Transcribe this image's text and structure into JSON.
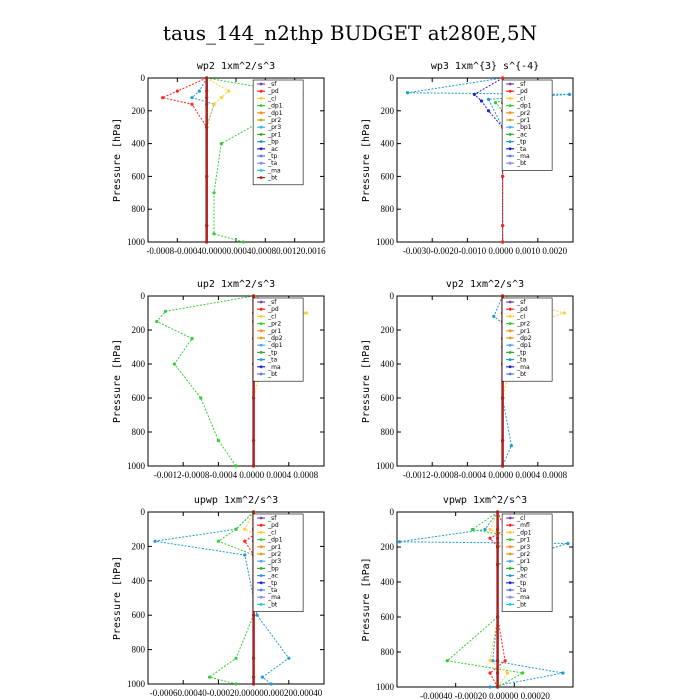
{
  "figure_title": "taus_144_n2thp  BUDGET at280E,5N",
  "chart_data": [
    {
      "type": "line",
      "title": "wp2  1xm^2/s^3",
      "ylabel": "Pressure [hPa]",
      "ylim": [
        1000,
        0
      ],
      "yticks": [
        "0",
        "200",
        "400",
        "600",
        "800",
        "1000"
      ],
      "xlim": [
        -0.0008,
        0.0016
      ],
      "xticks": [
        "-0.0008",
        "-0.0004",
        "0.0000",
        "0.0004",
        "0.0008",
        "0.0012",
        "0.0016"
      ],
      "xticklabels": "-0.0008-0.00040.00000.00040.00080.00120.0016",
      "legend": [
        "_sf",
        "_pd",
        "_cl",
        "_dp1",
        "_dp1",
        "_pr2",
        "_pr3",
        "_pr1",
        "_bp",
        "_ac",
        "_tp",
        "_ta",
        "_ma",
        "_bt"
      ],
      "series": [
        {
          "color": "#1f9bd6",
          "x": [
            0,
            -0.0001,
            -0.0002,
            0.0001,
            0,
            0,
            0,
            0
          ],
          "y": [
            0,
            80,
            120,
            160,
            300,
            600,
            900,
            1000
          ]
        },
        {
          "color": "#ff2020",
          "x": [
            0,
            -0.0004,
            -0.0006,
            -0.0002,
            0,
            0,
            0,
            0
          ],
          "y": [
            0,
            80,
            120,
            160,
            300,
            600,
            900,
            1000
          ]
        },
        {
          "color": "#ffcc33",
          "x": [
            0,
            0.0003,
            0.0002,
            0.0001,
            0,
            0,
            0,
            0
          ],
          "y": [
            0,
            80,
            120,
            160,
            300,
            600,
            900,
            1000
          ]
        },
        {
          "color": "#33cc33",
          "x": [
            0,
            0.0013,
            0.0007,
            0.0008,
            0.0002,
            0.0001,
            0.0001,
            0.0005
          ],
          "y": [
            0,
            100,
            150,
            250,
            400,
            700,
            950,
            1000
          ]
        },
        {
          "color": "#aa2222",
          "x": [
            0,
            0,
            0,
            0,
            0,
            0,
            0,
            0
          ],
          "y": [
            0,
            80,
            120,
            160,
            300,
            600,
            900,
            1000
          ]
        }
      ]
    },
    {
      "type": "line",
      "title": "wp3  1xm^{3} s^{-4}",
      "ylabel": "Pressure [hPa]",
      "ylim": [
        1000,
        0
      ],
      "yticks": [
        "0",
        "200",
        "400",
        "600",
        "800",
        "1000"
      ],
      "xlim": [
        -0.003,
        0.002
      ],
      "xticks": [
        "-0.0030",
        "-0.0020",
        "-0.0010",
        "0.0000",
        "0.0010",
        "0.0020"
      ],
      "xticklabels": "-0.0030-0.0020-0.0010 0.0000 0.0010 0.0020",
      "legend": [
        "_sf",
        "_pd",
        "_cl",
        "_dp1",
        "_pr2",
        "_pr1",
        "_bp1",
        "_ac",
        "_tp",
        "_ta",
        "_ma",
        "_bt"
      ],
      "series": [
        {
          "color": "#1f9bd6",
          "x": [
            0,
            -0.0027,
            0.0019,
            -0.0004,
            0,
            0,
            0,
            0
          ],
          "y": [
            0,
            90,
            100,
            130,
            300,
            600,
            900,
            1000
          ]
        },
        {
          "color": "#2222cc",
          "x": [
            0,
            -0.0008,
            -0.0006,
            -0.0004,
            0,
            0,
            0,
            0
          ],
          "y": [
            0,
            100,
            140,
            200,
            300,
            600,
            900,
            1000
          ]
        },
        {
          "color": "#33cc33",
          "x": [
            0,
            0.0005,
            -0.0002,
            0,
            0,
            0,
            0,
            0
          ],
          "y": [
            0,
            100,
            150,
            200,
            300,
            600,
            900,
            1000
          ]
        },
        {
          "color": "#ffcc33",
          "x": [
            0,
            0.0004,
            0.0002,
            0,
            0,
            0,
            0,
            0
          ],
          "y": [
            0,
            100,
            150,
            200,
            300,
            600,
            900,
            1000
          ]
        },
        {
          "color": "#ff2020",
          "x": [
            0,
            0.0002,
            0,
            0,
            0,
            0,
            0,
            0
          ],
          "y": [
            0,
            100,
            150,
            200,
            300,
            600,
            900,
            1000
          ]
        }
      ]
    },
    {
      "type": "line",
      "title": "up2  1xm^2/s^3",
      "ylabel": "Pressure [hPa]",
      "ylim": [
        1000,
        0
      ],
      "yticks": [
        "0",
        "200",
        "400",
        "600",
        "800",
        "1000"
      ],
      "xlim": [
        -0.0012,
        0.0008
      ],
      "xticks": [
        "-0.0012",
        "-0.0008",
        "-0.0004",
        "0.0000",
        "0.0004",
        "0.0008"
      ],
      "xticklabels": "-0.0012-0.0008-0.0004 0.0000 0.0004 0.0008",
      "legend": [
        "_sf",
        "_pd",
        "_cl",
        "_pr2",
        "_pr1",
        "_dp2",
        "_dp1",
        "_tp",
        "_ta",
        "_ma",
        "_bt"
      ],
      "series": [
        {
          "color": "#33cc33",
          "x": [
            0,
            -0.001,
            -0.0011,
            -0.0007,
            -0.0009,
            -0.0006,
            -0.0004,
            -0.0002
          ],
          "y": [
            0,
            90,
            150,
            250,
            400,
            600,
            850,
            1000
          ]
        },
        {
          "color": "#ffcc33",
          "x": [
            0,
            0.0006,
            0.0003,
            0.0002,
            0.0001,
            0,
            0,
            0
          ],
          "y": [
            0,
            100,
            150,
            250,
            400,
            600,
            850,
            1000
          ]
        },
        {
          "color": "#ff2020",
          "x": [
            0,
            0.0003,
            0.0001,
            0,
            0,
            0,
            0,
            0
          ],
          "y": [
            0,
            100,
            150,
            250,
            400,
            600,
            850,
            1000
          ]
        },
        {
          "color": "#aa2222",
          "x": [
            0,
            0,
            0,
            0,
            0,
            0,
            0,
            0
          ],
          "y": [
            0,
            100,
            150,
            250,
            400,
            600,
            850,
            1000
          ]
        }
      ]
    },
    {
      "type": "line",
      "title": "vp2  1xm^2/s^3",
      "ylabel": "Pressure [hPa]",
      "ylim": [
        1000,
        0
      ],
      "yticks": [
        "0",
        "200",
        "400",
        "600",
        "800",
        "1000"
      ],
      "xlim": [
        -0.0012,
        0.0008
      ],
      "xticks": [
        "-0.0012",
        "-0.0008",
        "-0.0004",
        "0.0000",
        "0.0004",
        "0.0008"
      ],
      "xticklabels": "-0.0012-0.0008-0.0004 0.0000 0.0004 0.0008",
      "legend": [
        "_sf",
        "_pd",
        "_cl",
        "_pr2",
        "_pr1",
        "_dp2",
        "_dp1",
        "_tp",
        "_ta",
        "_ma",
        "_bt"
      ],
      "series": [
        {
          "color": "#ffcc33",
          "x": [
            0,
            0.0007,
            0.0004,
            0.0003,
            0.0001,
            0,
            0,
            0
          ],
          "y": [
            0,
            100,
            150,
            250,
            400,
            600,
            850,
            1000
          ]
        },
        {
          "color": "#33cc33",
          "x": [
            0,
            0.0002,
            0.0001,
            0,
            0,
            0,
            0,
            0
          ],
          "y": [
            0,
            120,
            200,
            300,
            400,
            600,
            850,
            1000
          ]
        },
        {
          "color": "#1f9bd6",
          "x": [
            0,
            -0.0001,
            0.0001,
            0,
            0,
            0,
            0.0001,
            0
          ],
          "y": [
            0,
            120,
            200,
            300,
            400,
            600,
            880,
            1000
          ]
        },
        {
          "color": "#ff2020",
          "x": [
            0,
            0.0002,
            0.0001,
            0,
            0,
            0,
            0,
            0
          ],
          "y": [
            0,
            100,
            150,
            250,
            400,
            600,
            850,
            1000
          ]
        },
        {
          "color": "#aa2222",
          "x": [
            0,
            0,
            0,
            0,
            0,
            0,
            0,
            0
          ],
          "y": [
            0,
            100,
            150,
            250,
            400,
            600,
            850,
            1000
          ]
        }
      ]
    },
    {
      "type": "line",
      "title": "upwp  1xm^2/s^3",
      "ylabel": "Pressure [hPa]",
      "ylim": [
        1000,
        0
      ],
      "yticks": [
        "0",
        "200",
        "400",
        "600",
        "800",
        "1000"
      ],
      "xlim": [
        -0.0006,
        0.0004
      ],
      "xticks": [
        "-0.00060",
        "-0.00040",
        "-0.00020",
        "0.00000",
        "0.00020",
        "0.00040"
      ],
      "xticklabels": "-0.00060.00040-0.00020.000000.000200.00040",
      "legend": [
        "_sf",
        "_pd",
        "_cl",
        "_dp1",
        "_pr1",
        "_pr2",
        "_pr3",
        "_bp",
        "_ac",
        "_tp",
        "_ta",
        "_ma",
        "_bt"
      ],
      "series": [
        {
          "color": "#1f9bd6",
          "x": [
            0,
            -0.0001,
            -0.00056,
            -5e-05,
            2e-05,
            0.0002,
            5e-05,
            0.0001
          ],
          "y": [
            0,
            100,
            170,
            250,
            600,
            850,
            960,
            1000
          ]
        },
        {
          "color": "#33cc33",
          "x": [
            0,
            -0.0001,
            -0.0002,
            0,
            0,
            -0.0001,
            -0.00025,
            -0.0001
          ],
          "y": [
            0,
            100,
            170,
            250,
            600,
            850,
            960,
            1000
          ]
        },
        {
          "color": "#ffcc33",
          "x": [
            0,
            -5e-05,
            8e-05,
            3e-05,
            0,
            0,
            0,
            0
          ],
          "y": [
            0,
            100,
            170,
            250,
            600,
            850,
            960,
            1000
          ]
        },
        {
          "color": "#ff2020",
          "x": [
            0,
            5e-05,
            -5e-05,
            0,
            0,
            0,
            0,
            0
          ],
          "y": [
            0,
            100,
            170,
            250,
            600,
            850,
            960,
            1000
          ]
        },
        {
          "color": "#aa2222",
          "x": [
            0,
            0,
            0,
            0,
            0,
            0,
            0,
            0
          ],
          "y": [
            0,
            100,
            170,
            250,
            600,
            850,
            960,
            1000
          ]
        }
      ]
    },
    {
      "type": "line",
      "title": "vpwp  1xm^2/s^3",
      "ylabel": "Pressure [hPa]",
      "ylim": [
        1000,
        0
      ],
      "yticks": [
        "0",
        "200",
        "400",
        "600",
        "800",
        "1000"
      ],
      "xlim": [
        -0.0004,
        0.0003
      ],
      "xticks": [
        "-0.00040",
        "-0.00020",
        "0.00000",
        "0.00020"
      ],
      "xticklabels": "-0.00040  -0.00020   0.00000   0.00020",
      "legend": [
        "_cl",
        "_mfl",
        "_dp1",
        "_pr1",
        "_pr3",
        "_pr2",
        "_pr1",
        "_bp",
        "_ac",
        "_tp",
        "_ta",
        "_ma",
        "_bt"
      ],
      "series": [
        {
          "color": "#1f9bd6",
          "x": [
            0,
            -5e-05,
            -0.00039,
            0.00028,
            0,
            0,
            -2e-05,
            0.00026,
            -3e-05
          ],
          "y": [
            0,
            100,
            170,
            180,
            300,
            600,
            850,
            920,
            1000
          ]
        },
        {
          "color": "#33cc33",
          "x": [
            0,
            -0.0001,
            0.0001,
            0,
            0,
            0,
            -0.0002,
            0.0001,
            0
          ],
          "y": [
            0,
            100,
            150,
            200,
            300,
            600,
            850,
            920,
            1000
          ]
        },
        {
          "color": "#ffcc33",
          "x": [
            0,
            -3e-05,
            5e-05,
            0,
            0,
            0,
            -3e-05,
            4e-05,
            0
          ],
          "y": [
            0,
            100,
            150,
            200,
            300,
            600,
            850,
            920,
            1000
          ]
        },
        {
          "color": "#ff2020",
          "x": [
            0,
            3e-05,
            -3e-05,
            0,
            0,
            0,
            3e-05,
            -3e-05,
            0
          ],
          "y": [
            0,
            100,
            150,
            200,
            300,
            600,
            850,
            920,
            1000
          ]
        },
        {
          "color": "#aa2222",
          "x": [
            0,
            0,
            0,
            0,
            0,
            0,
            0,
            0,
            0
          ],
          "y": [
            0,
            100,
            150,
            200,
            300,
            600,
            850,
            920,
            1000
          ]
        }
      ]
    }
  ]
}
